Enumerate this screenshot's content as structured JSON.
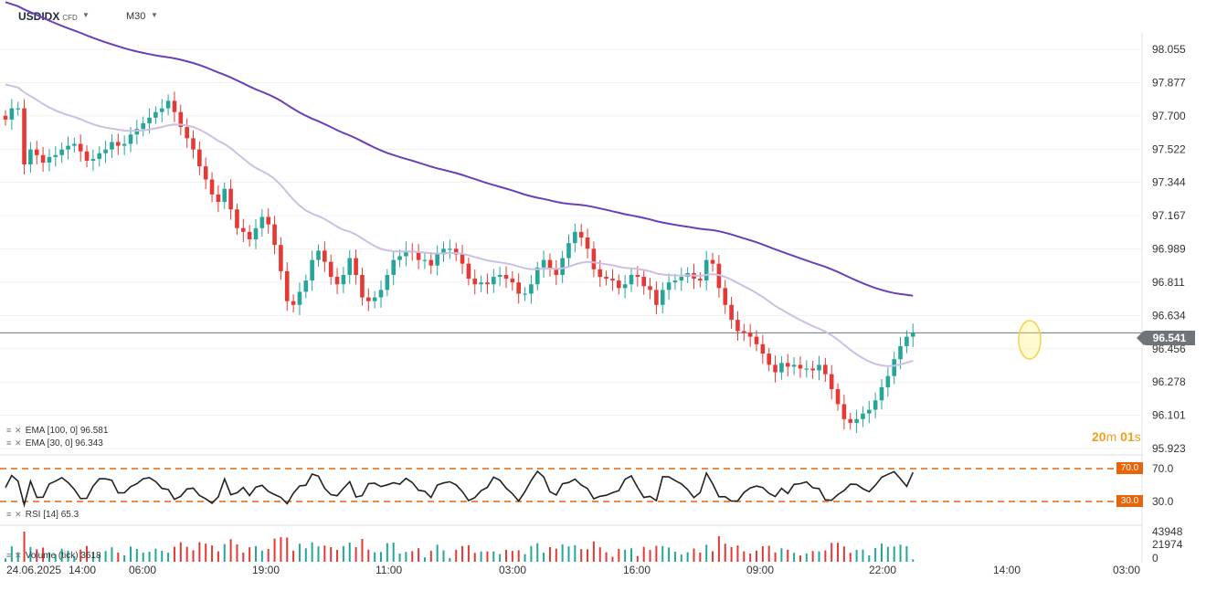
{
  "header": {
    "symbol": "USDIDX",
    "symbol_type": "CFD",
    "timeframe": "M30"
  },
  "current_price": "96.541",
  "countdown": {
    "min": "20",
    "min_unit": "m",
    "sec": "01",
    "sec_unit": "s"
  },
  "legends": {
    "ema100": "EMA [100, 0] 96.581",
    "ema30": "EMA [30, 0] 96.343",
    "rsi": "RSI [14] 65.3",
    "volume": "Volume (tick) 3618"
  },
  "colors": {
    "up": "#26a69a",
    "down": "#e53935",
    "ema100": "#6a3fb8",
    "ema30": "#cdbfe3",
    "rsi_levels": "#e8630a",
    "highlight": "#f3d34a"
  },
  "chart_data": [
    {
      "type": "candlestick",
      "title": "USDIDX",
      "timeframe": "M30",
      "y_ticks": [
        "98.055",
        "97.877",
        "97.700",
        "97.522",
        "97.344",
        "97.167",
        "96.989",
        "96.811",
        "96.634",
        "96.456",
        "96.278",
        "96.101",
        "95.923"
      ],
      "x_ticks": [
        "24.06.2025",
        "14:00",
        "06:00",
        "19:00",
        "11:00",
        "03:00",
        "16:00",
        "09:00",
        "22:00",
        "14:00",
        "03:00"
      ],
      "ylim": [
        95.923,
        98.055
      ],
      "last_price": 96.541,
      "closes": [
        97.68,
        97.74,
        97.74,
        97.44,
        97.52,
        97.49,
        97.45,
        97.48,
        97.49,
        97.52,
        97.54,
        97.55,
        97.51,
        97.46,
        97.47,
        97.5,
        97.52,
        97.56,
        97.54,
        97.55,
        97.6,
        97.63,
        97.66,
        97.69,
        97.72,
        97.74,
        97.78,
        97.72,
        97.64,
        97.58,
        97.52,
        97.43,
        97.36,
        97.28,
        97.24,
        97.31,
        97.2,
        97.1,
        97.08,
        97.04,
        97.1,
        97.16,
        97.12,
        97.01,
        96.87,
        96.71,
        96.69,
        96.76,
        96.82,
        96.93,
        96.98,
        96.92,
        96.84,
        96.8,
        96.85,
        96.94,
        96.85,
        96.73,
        96.71,
        96.73,
        96.77,
        96.85,
        96.93,
        96.95,
        96.98,
        96.97,
        96.93,
        96.93,
        96.9,
        96.96,
        96.99,
        96.99,
        96.96,
        96.91,
        96.83,
        96.8,
        96.81,
        96.8,
        96.84,
        96.85,
        96.83,
        96.81,
        96.75,
        96.75,
        96.8,
        96.89,
        96.93,
        96.88,
        96.85,
        96.94,
        97.02,
        97.08,
        97.05,
        96.99,
        96.88,
        96.84,
        96.83,
        96.82,
        96.78,
        96.8,
        96.85,
        96.84,
        96.79,
        96.77,
        96.69,
        96.77,
        96.81,
        96.82,
        96.84,
        96.86,
        96.83,
        96.82,
        96.93,
        96.91,
        96.78,
        96.69,
        96.61,
        96.55,
        96.54,
        96.52,
        96.48,
        96.43,
        96.37,
        96.33,
        96.38,
        96.36,
        96.37,
        96.35,
        96.35,
        96.34,
        96.37,
        96.32,
        96.24,
        96.16,
        96.08,
        96.06,
        96.08,
        96.11,
        96.13,
        96.18,
        96.25,
        96.31,
        96.4,
        96.47,
        96.52,
        96.54
      ],
      "series": [
        {
          "name": "EMA [100, 0]",
          "last": 96.581
        },
        {
          "name": "EMA [30, 0]",
          "last": 96.343
        }
      ]
    },
    {
      "type": "line",
      "title": "RSI [14]",
      "last": 65.3,
      "levels": [
        70.0,
        30.0
      ],
      "y_ticks": [
        "70.0",
        "30.0"
      ]
    },
    {
      "type": "bar",
      "title": "Volume (tick)",
      "last": 3618,
      "y_ticks": [
        "43948",
        "21974",
        "0"
      ]
    }
  ]
}
